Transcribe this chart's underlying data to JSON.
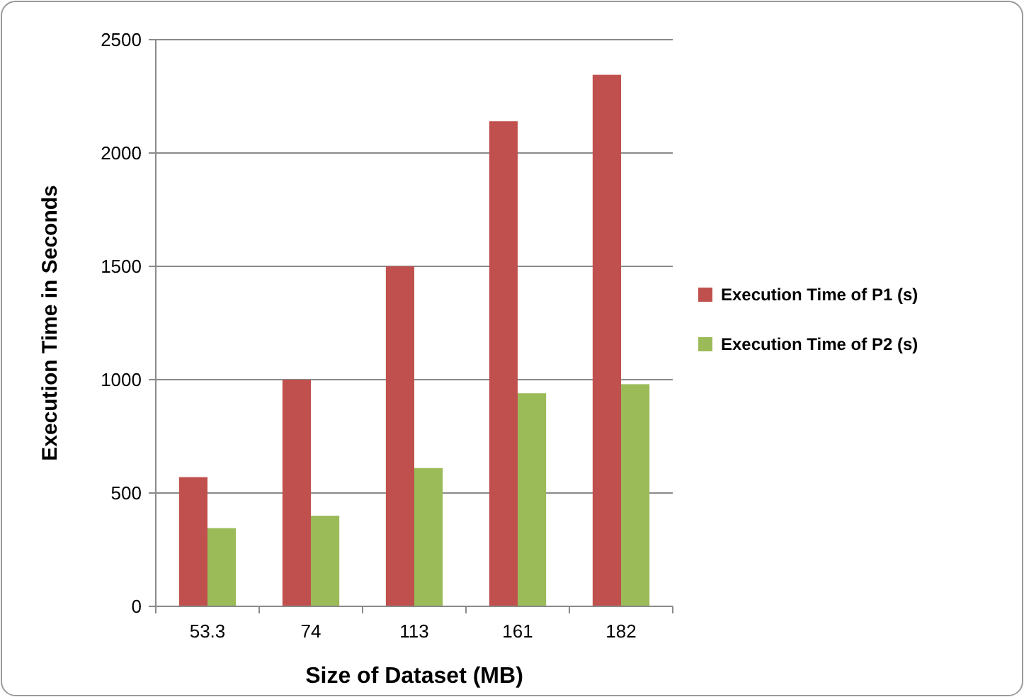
{
  "chart_data": {
    "type": "bar",
    "xlabel": "Size of Dataset (MB)",
    "ylabel": "Execution Time in Seconds",
    "categories": [
      "53.3",
      "74",
      "113",
      "161",
      "182"
    ],
    "series": [
      {
        "name": "Execution Time of P1 (s)",
        "color": "#c0504d",
        "values": [
          570,
          1000,
          1500,
          2140,
          2345
        ]
      },
      {
        "name": "Execution Time of P2 (s)",
        "color": "#9bbb59",
        "values": [
          345,
          400,
          610,
          940,
          980
        ]
      }
    ],
    "ylim": [
      0,
      2500
    ],
    "yticks": [
      0,
      500,
      1000,
      1500,
      2000,
      2500
    ],
    "grid": "y",
    "legend": "right"
  }
}
